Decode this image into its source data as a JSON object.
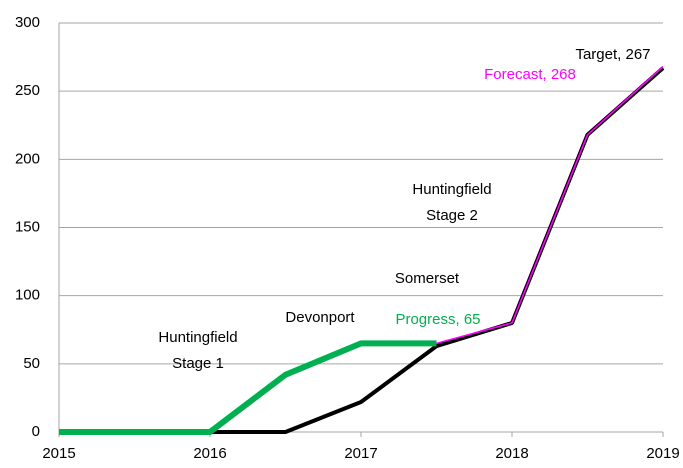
{
  "chart_data": {
    "type": "line",
    "x": [
      2015,
      2015.5,
      2016,
      2016.5,
      2017,
      2017.5,
      2018,
      2018.5,
      2019
    ],
    "series": [
      {
        "name": "Target",
        "color": "#000000",
        "values": [
          0,
          0,
          0,
          0,
          22,
          63,
          80,
          218,
          267
        ]
      },
      {
        "name": "Progress",
        "color": "#00b050",
        "values": [
          0,
          0,
          0,
          42,
          65,
          65,
          null,
          null,
          null
        ]
      },
      {
        "name": "Forecast",
        "color": "#ff00ff",
        "values": [
          null,
          null,
          null,
          null,
          null,
          65,
          80,
          218,
          268
        ]
      }
    ],
    "xlim": [
      2015,
      2019
    ],
    "xticks": [
      2015,
      2016,
      2017,
      2018,
      2019
    ],
    "ylim": [
      0,
      300
    ],
    "yticks": [
      0,
      50,
      100,
      150,
      200,
      250,
      300
    ],
    "grid": true,
    "annotations": [
      {
        "text": [
          "Target, 267"
        ],
        "color": "#000000"
      },
      {
        "text": [
          "Forecast, 268"
        ],
        "color": "#ff00ff"
      },
      {
        "text": [
          "Huntingfield",
          "Stage 2"
        ],
        "color": "#000000"
      },
      {
        "text": [
          "Somerset"
        ],
        "color": "#000000"
      },
      {
        "text": [
          "Devonport"
        ],
        "color": "#000000"
      },
      {
        "text": [
          "Progress, 65"
        ],
        "color": "#00b050"
      },
      {
        "text": [
          "Huntingfield",
          "Stage 1"
        ],
        "color": "#000000"
      }
    ]
  }
}
